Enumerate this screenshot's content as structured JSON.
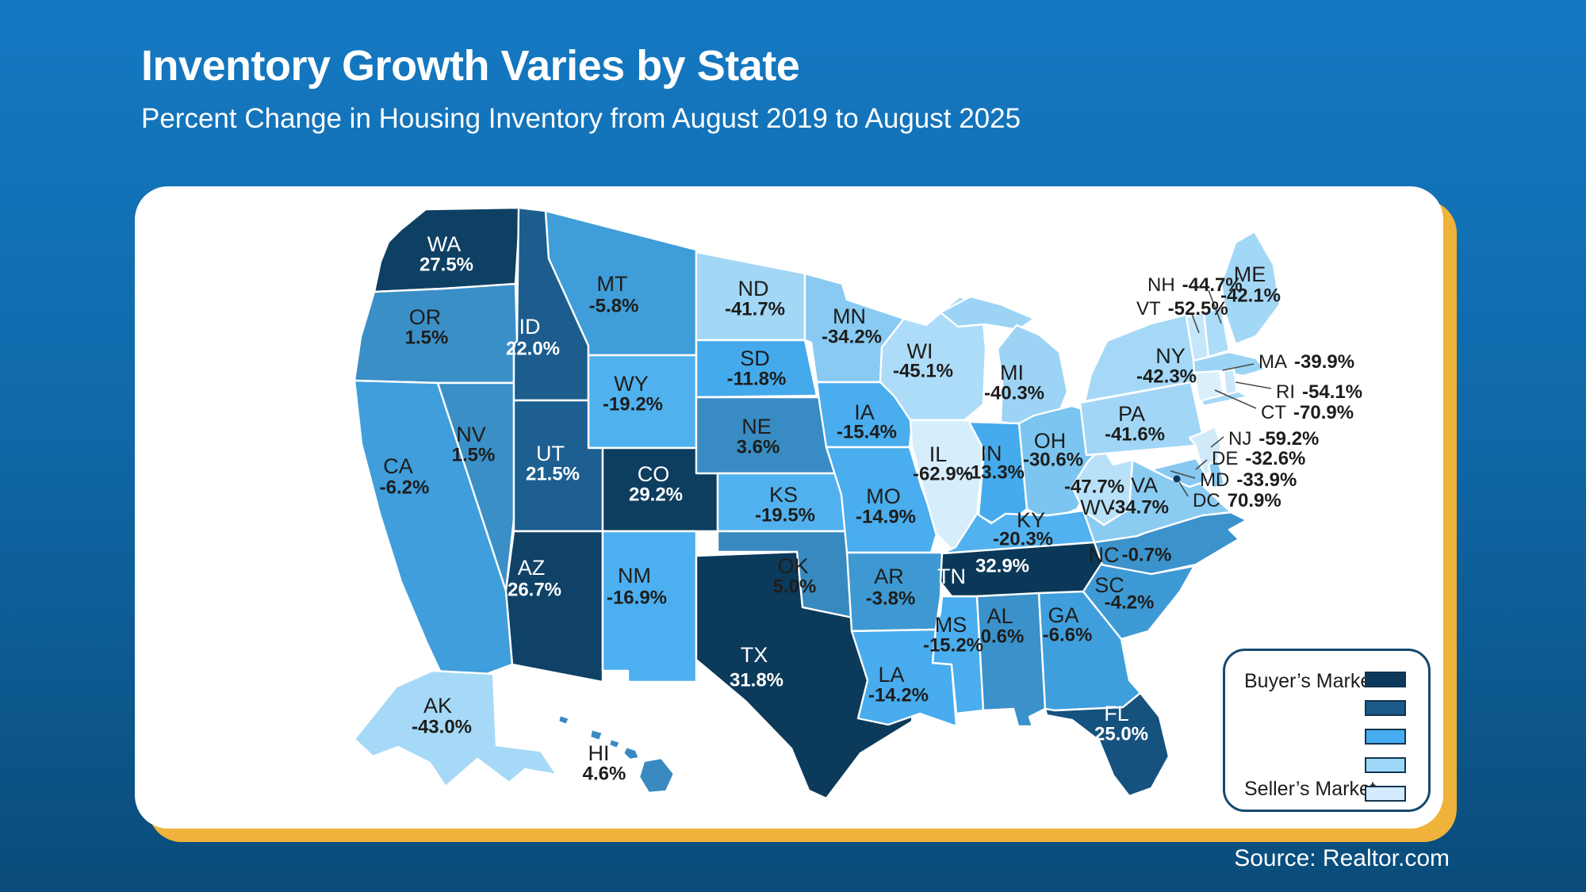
{
  "header": {
    "title": "Inventory Growth Varies by State",
    "subtitle": "Percent Change in Housing Inventory from August 2019 to August 2025"
  },
  "source": "Source: Realtor.com",
  "legend": {
    "top_label": "Buyer’s Market",
    "bottom_label": "Seller’s Market",
    "swatches": [
      "#0d3a5c",
      "#1b5a88",
      "#45acf1",
      "#9ed7f7",
      "#d3ebfc"
    ]
  },
  "chart_data": {
    "type": "heatmap",
    "subtype": "us_state_choropleth",
    "title": "Inventory Growth Varies by State",
    "metric": "Percent Change in Housing Inventory from August 2019 to August 2025",
    "unit": "percent",
    "source": "Realtor.com",
    "legend": {
      "high_label": "Buyer’s Market",
      "low_label": "Seller’s Market",
      "position": "bottom-right"
    },
    "states": [
      {
        "abbr": "WA",
        "value": 27.5
      },
      {
        "abbr": "OR",
        "value": 1.5
      },
      {
        "abbr": "CA",
        "value": -6.2
      },
      {
        "abbr": "NV",
        "value": 1.5
      },
      {
        "abbr": "ID",
        "value": 22.0
      },
      {
        "abbr": "MT",
        "value": -5.8
      },
      {
        "abbr": "WY",
        "value": -19.2
      },
      {
        "abbr": "UT",
        "value": 21.5
      },
      {
        "abbr": "CO",
        "value": 29.2
      },
      {
        "abbr": "AZ",
        "value": 26.7
      },
      {
        "abbr": "NM",
        "value": -16.9
      },
      {
        "abbr": "ND",
        "value": -41.7
      },
      {
        "abbr": "SD",
        "value": -11.8
      },
      {
        "abbr": "NE",
        "value": 3.6
      },
      {
        "abbr": "KS",
        "value": -19.5
      },
      {
        "abbr": "OK",
        "value": 5.0
      },
      {
        "abbr": "TX",
        "value": 31.8
      },
      {
        "abbr": "MN",
        "value": -34.2
      },
      {
        "abbr": "IA",
        "value": -15.4
      },
      {
        "abbr": "MO",
        "value": -14.9
      },
      {
        "abbr": "AR",
        "value": -3.8
      },
      {
        "abbr": "LA",
        "value": -14.2
      },
      {
        "abbr": "WI",
        "value": -45.1
      },
      {
        "abbr": "IL",
        "value": -62.9
      },
      {
        "abbr": "MS",
        "value": -15.2
      },
      {
        "abbr": "MI",
        "value": -40.3
      },
      {
        "abbr": "IN",
        "value": -13.3
      },
      {
        "abbr": "OH",
        "value": -30.6
      },
      {
        "abbr": "KY",
        "value": -20.3
      },
      {
        "abbr": "TN",
        "value": 32.9
      },
      {
        "abbr": "AL",
        "value": 0.6
      },
      {
        "abbr": "GA",
        "value": -6.6
      },
      {
        "abbr": "FL",
        "value": 25.0
      },
      {
        "abbr": "SC",
        "value": -4.2
      },
      {
        "abbr": "NC",
        "value": -0.7
      },
      {
        "abbr": "VA",
        "value": -34.7
      },
      {
        "abbr": "WV",
        "value": -47.7
      },
      {
        "abbr": "PA",
        "value": -41.6
      },
      {
        "abbr": "NY",
        "value": -42.3
      },
      {
        "abbr": "NJ",
        "value": -59.2
      },
      {
        "abbr": "DE",
        "value": -32.6
      },
      {
        "abbr": "MD",
        "value": -33.9
      },
      {
        "abbr": "DC",
        "value": 70.9
      },
      {
        "abbr": "CT",
        "value": -70.9
      },
      {
        "abbr": "RI",
        "value": -54.1
      },
      {
        "abbr": "MA",
        "value": -39.9
      },
      {
        "abbr": "VT",
        "value": -52.5
      },
      {
        "abbr": "NH",
        "value": -44.7
      },
      {
        "abbr": "ME",
        "value": -42.1
      },
      {
        "abbr": "AK",
        "value": -43.0
      },
      {
        "abbr": "HI",
        "value": 4.6
      }
    ]
  }
}
